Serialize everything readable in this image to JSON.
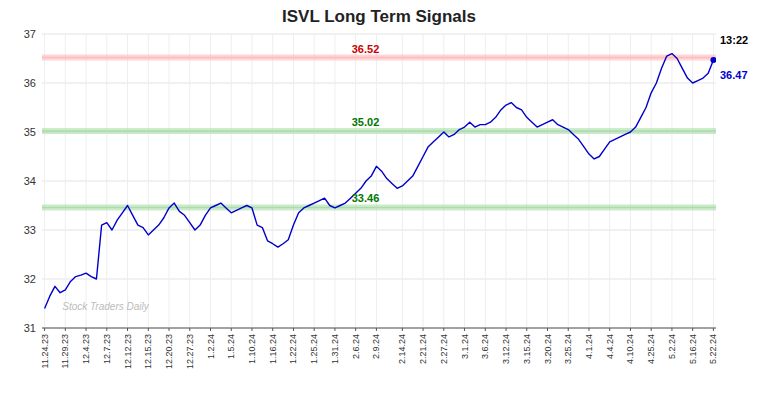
{
  "chart_data": {
    "type": "line",
    "title": "ISVL Long Term Signals",
    "categories": [
      "11.24.23",
      null,
      null,
      null,
      "11.29.23",
      null,
      null,
      null,
      "12.4.23",
      null,
      null,
      null,
      "12.7.23",
      null,
      null,
      null,
      "12.12.23",
      null,
      null,
      null,
      "12.15.23",
      null,
      null,
      null,
      "12.20.23",
      null,
      null,
      null,
      "12.27.23",
      null,
      null,
      null,
      "1.2.24",
      null,
      null,
      null,
      "1.5.24",
      null,
      null,
      null,
      "1.10.24",
      null,
      null,
      null,
      "1.16.24",
      null,
      null,
      null,
      "1.22.24",
      null,
      null,
      null,
      "1.25.24",
      null,
      null,
      null,
      "1.31.24",
      null,
      null,
      null,
      "2.6.24",
      null,
      null,
      null,
      "2.9.24",
      null,
      null,
      null,
      null,
      "2.14.24",
      null,
      null,
      null,
      "2.21.24",
      null,
      null,
      null,
      "2.27.24",
      null,
      null,
      null,
      "3.1.24",
      null,
      null,
      null,
      "3.6.24",
      null,
      null,
      null,
      "3.12.24",
      null,
      null,
      null,
      "3.15.24",
      null,
      null,
      null,
      "3.20.24",
      null,
      null,
      null,
      "3.25.24",
      null,
      null,
      null,
      "4.1.24",
      null,
      null,
      null,
      "4.4.24",
      null,
      null,
      null,
      "4.10.24",
      null,
      null,
      null,
      "4.25.24",
      null,
      null,
      null,
      "5.2.24",
      null,
      null,
      null,
      "5.16.24",
      null,
      null,
      null,
      "5.22.24"
    ],
    "values": [
      31.4,
      31.65,
      31.85,
      31.72,
      31.78,
      31.95,
      32.05,
      32.08,
      32.12,
      32.05,
      32.0,
      33.1,
      33.15,
      33.0,
      33.2,
      33.35,
      33.5,
      33.3,
      33.1,
      33.05,
      32.9,
      33.0,
      33.1,
      33.25,
      33.45,
      33.55,
      33.38,
      33.3,
      33.15,
      33.0,
      33.1,
      33.3,
      33.45,
      33.5,
      33.55,
      33.45,
      33.35,
      33.4,
      33.45,
      33.5,
      33.45,
      33.1,
      33.05,
      32.78,
      32.72,
      32.65,
      32.72,
      32.8,
      33.1,
      33.35,
      33.45,
      33.5,
      33.55,
      33.6,
      33.65,
      33.5,
      33.45,
      33.5,
      33.55,
      33.65,
      33.75,
      33.85,
      34.0,
      34.1,
      34.3,
      34.2,
      34.05,
      33.95,
      33.85,
      33.9,
      34.0,
      34.1,
      34.3,
      34.5,
      34.7,
      34.8,
      34.9,
      35.0,
      34.9,
      34.95,
      35.05,
      35.1,
      35.2,
      35.1,
      35.15,
      35.15,
      35.2,
      35.3,
      35.45,
      35.55,
      35.6,
      35.5,
      35.45,
      35.3,
      35.2,
      35.1,
      35.15,
      35.2,
      35.25,
      35.15,
      35.1,
      35.05,
      34.95,
      34.85,
      34.7,
      34.55,
      34.45,
      34.5,
      34.65,
      34.8,
      34.85,
      34.9,
      34.95,
      35.0,
      35.1,
      35.3,
      35.5,
      35.8,
      36.0,
      36.3,
      36.55,
      36.6,
      36.5,
      36.3,
      36.1,
      36.0,
      36.05,
      36.1,
      36.2,
      36.47
    ],
    "color": "#0000cc",
    "ylim": [
      31.0,
      37.0
    ],
    "yticks": [
      31,
      32,
      33,
      34,
      35,
      36,
      37
    ],
    "grid": true,
    "reference_lines": [
      {
        "value": 36.52,
        "color": "#ffbbbb",
        "label_color": "#cc0000"
      },
      {
        "value": 35.02,
        "color": "#aaddaa",
        "label_color": "#007700"
      },
      {
        "value": 33.46,
        "color": "#aaddaa",
        "label_color": "#007700"
      }
    ],
    "last_point": {
      "value": 36.47,
      "color": "#0000cc"
    },
    "annotations": [
      {
        "text": "13:22",
        "color": "#000000"
      },
      {
        "text": "36.47",
        "color": "#0000cc"
      },
      {
        "text": "Stock Traders Daily",
        "color": "#bbbbbb"
      }
    ]
  }
}
